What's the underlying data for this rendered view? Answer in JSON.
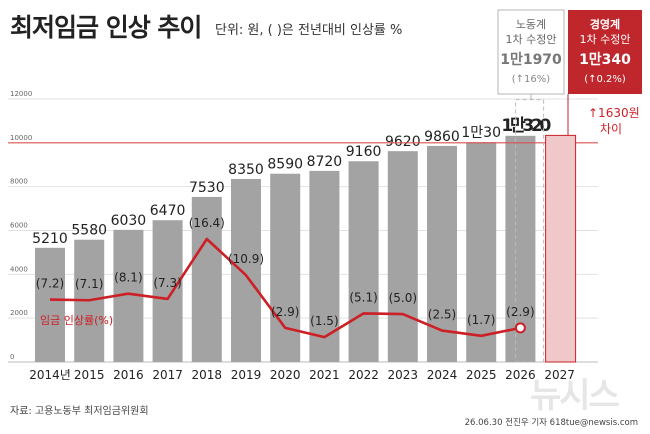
{
  "header": {
    "title": "최저임금 인상 추이",
    "unit": "단위: 원, ( )은 전년대비 인상률 %"
  },
  "footer": {
    "source": "자료: 고용노동부 최저임금위원회",
    "credit": "26.06.30 전진우 기자 618tue@newsis.com",
    "logo": "뉴시스"
  },
  "colors": {
    "bar": "#a3a3a3",
    "line": "#cc1f26",
    "proposal_fill": "#f1c8ca",
    "proposal_stroke": "#cc1f26",
    "dashed": "#bbbbbb",
    "highlight_box": "#c0272d"
  },
  "chart_data": {
    "type": "bar",
    "categories": [
      "2014년",
      "2015",
      "2016",
      "2017",
      "2018",
      "2019",
      "2020",
      "2021",
      "2022",
      "2023",
      "2024",
      "2025",
      "2026",
      "2027"
    ],
    "ylim": [
      0,
      12000
    ],
    "ytick_labels": [
      "0",
      "2000",
      "4000",
      "6000",
      "8000",
      "10000",
      "12000"
    ],
    "series": [
      {
        "values": [
          5210,
          5580,
          6030,
          6470,
          7530,
          8350,
          8590,
          8720,
          9160,
          9620,
          9860,
          10030,
          10320,
          null
        ],
        "labels": [
          "5210",
          "5580",
          "6030",
          "6470",
          "7530",
          "8350",
          "8590",
          "8720",
          "9160",
          "9620",
          "9860",
          "1만30",
          "1만320",
          ""
        ]
      },
      {
        "name": "임금 인상률(%)",
        "values": [
          7.2,
          7.1,
          8.1,
          7.3,
          16.4,
          10.9,
          2.9,
          1.5,
          5.1,
          5.0,
          2.5,
          1.7,
          2.9,
          null
        ],
        "labels": [
          "(7.2)",
          "(7.1)",
          "(8.1)",
          "(7.3)",
          "(16.4)",
          "(10.9)",
          "(2.9)",
          "(1.5)",
          "(5.1)",
          "(5.0)",
          "(2.5)",
          "(1.7)",
          "(2.9)",
          ""
        ]
      }
    ],
    "reference_line": {
      "value": 10000
    },
    "proposals": [
      {
        "title_lines": [
          "노동계",
          "1차 수정안"
        ],
        "amount": "1만1970",
        "change": "(↑16%)",
        "value": 11970
      },
      {
        "title_lines": [
          "경영계",
          "1차 수정안"
        ],
        "amount": "1만340",
        "change": "(↑0.2%)",
        "value": 10340
      }
    ],
    "gap_annotation": [
      "↑1630원",
      "차이"
    ]
  }
}
